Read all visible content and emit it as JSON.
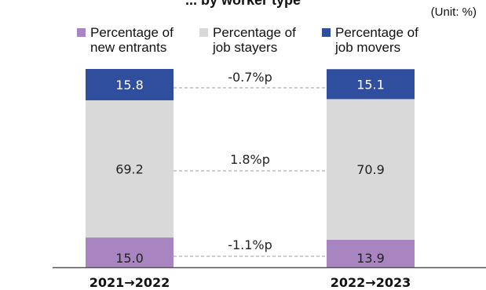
{
  "title": "... by worker type",
  "unit": "(Unit: %)",
  "legend": [
    {
      "line1": "Percentage of",
      "line2": "new entrants",
      "color": "#a884c0"
    },
    {
      "line1": "Percentage of",
      "line2": "job stayers",
      "color": "#d9d9d9"
    },
    {
      "line1": "Percentage of",
      "line2": "job movers",
      "color": "#2f4f9e"
    }
  ],
  "chart_data": {
    "type": "bar",
    "stacked": true,
    "categories": [
      "2021→2022",
      "2022→2023"
    ],
    "series": [
      {
        "name": "Percentage of new entrants",
        "values": [
          15.0,
          13.9
        ],
        "color": "#a884c0"
      },
      {
        "name": "Percentage of job stayers",
        "values": [
          69.2,
          70.9
        ],
        "color": "#d9d9d9"
      },
      {
        "name": "Percentage of job movers",
        "values": [
          15.8,
          15.1
        ],
        "color": "#2f4f9e"
      }
    ],
    "value_labels": [
      [
        "15.0",
        "69.2",
        "15.8"
      ],
      [
        "13.9",
        "70.9",
        "15.1"
      ]
    ],
    "differences": [
      "-1.1%p",
      "1.8%p",
      "-0.7%p"
    ],
    "ylim": [
      0,
      100
    ]
  }
}
